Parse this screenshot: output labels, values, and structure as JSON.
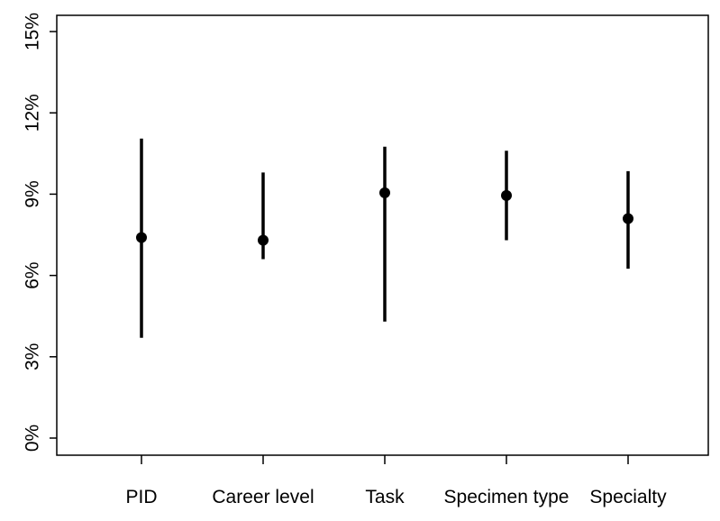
{
  "chart_data": {
    "type": "scatter",
    "categories": [
      "PID",
      "Career level",
      "Task",
      "Specimen type",
      "Specialty"
    ],
    "estimates": [
      0.074,
      0.073,
      0.0905,
      0.0895,
      0.081
    ],
    "lower": [
      0.037,
      0.066,
      0.043,
      0.073,
      0.0625
    ],
    "upper": [
      0.1105,
      0.098,
      0.1075,
      0.106,
      0.0985
    ],
    "ylim": [
      0,
      0.15
    ],
    "yticks": [
      0,
      0.03,
      0.06,
      0.09,
      0.12,
      0.15
    ],
    "ytick_labels": [
      "0%",
      "3%",
      "6%",
      "9%",
      "12%",
      "15%"
    ],
    "title": "",
    "xlabel": "",
    "ylabel": "",
    "grid": false,
    "colors": {
      "marker": "#000000",
      "line": "#000000",
      "axis": "#000000"
    }
  }
}
